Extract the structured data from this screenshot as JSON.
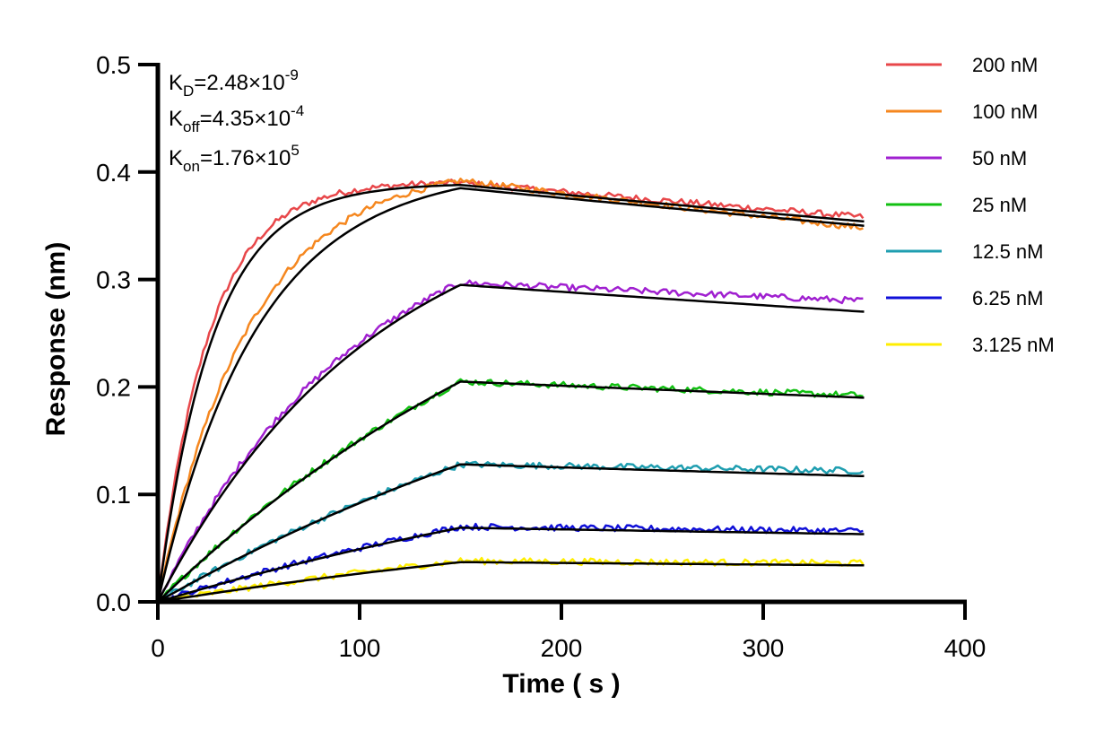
{
  "chart_data": {
    "type": "line",
    "xlabel": "Time ( s )",
    "ylabel": "Response (nm)",
    "xlim": [
      0,
      400
    ],
    "ylim": [
      0,
      0.5
    ],
    "xticks": [
      "0",
      "100",
      "200",
      "300",
      "400"
    ],
    "yticks": [
      "0.0",
      "0.1",
      "0.2",
      "0.3",
      "0.4",
      "0.5"
    ],
    "grid": false,
    "legend_position": "right",
    "annotations": {
      "kd": {
        "base": "K",
        "sub": "D",
        "mid": "=2.48×10",
        "sup": "-9"
      },
      "koff": {
        "base": "K",
        "sub": "off",
        "mid": "=4.35×10",
        "sup": "-4"
      },
      "kon": {
        "base": "K",
        "sub": "on",
        "mid": "=1.76×10",
        "sup": "5"
      }
    },
    "association_end_s": 150,
    "dissociation_end_s": 350,
    "fit_color": "#000000",
    "series": [
      {
        "name": "200 nM",
        "color": "#e8474a",
        "plateau_s": 0.39,
        "end_s": 0.358,
        "fit_plateau": 0.388,
        "fit_end": 0.354,
        "k_assoc": 0.04,
        "noise": 0.003
      },
      {
        "name": "100 nM",
        "color": "#f5871f",
        "plateau_s": 0.392,
        "end_s": 0.348,
        "fit_plateau": 0.385,
        "fit_end": 0.35,
        "k_assoc": 0.022,
        "noise": 0.003
      },
      {
        "name": "50 nM",
        "color": "#a020d0",
        "plateau_s": 0.297,
        "end_s": 0.28,
        "fit_plateau": 0.295,
        "fit_end": 0.27,
        "k_assoc": 0.01,
        "noise": 0.003
      },
      {
        "name": "25 nM",
        "color": "#12c012",
        "plateau_s": 0.205,
        "end_s": 0.192,
        "fit_plateau": 0.205,
        "fit_end": 0.19,
        "k_assoc": 0.0045,
        "noise": 0.003
      },
      {
        "name": "12.5 nM",
        "color": "#1f9eb0",
        "plateau_s": 0.128,
        "end_s": 0.122,
        "fit_plateau": 0.128,
        "fit_end": 0.117,
        "k_assoc": 0.0035,
        "noise": 0.003
      },
      {
        "name": "6.25 nM",
        "color": "#1010d8",
        "plateau_s": 0.07,
        "end_s": 0.066,
        "fit_plateau": 0.069,
        "fit_end": 0.063,
        "k_assoc": 0.003,
        "noise": 0.003
      },
      {
        "name": "3.125 nM",
        "color": "#ffee00",
        "plateau_s": 0.038,
        "end_s": 0.036,
        "fit_plateau": 0.037,
        "fit_end": 0.034,
        "k_assoc": 0.003,
        "noise": 0.003
      }
    ]
  }
}
